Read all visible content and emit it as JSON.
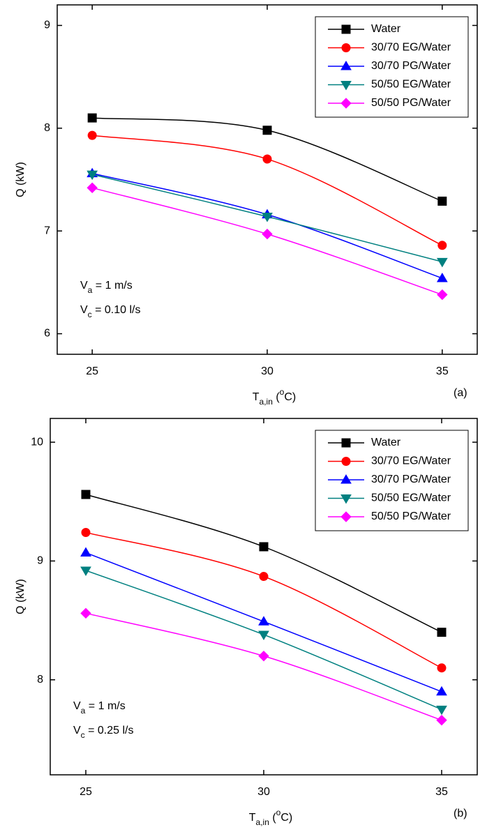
{
  "chart_data": [
    {
      "type": "line",
      "y_label": "Q (kW)",
      "x_label": {
        "main": "T",
        "sub": "a,in",
        "rest": " (",
        "sup": "o",
        "end": "C)"
      },
      "panel_label": "(a)",
      "annotations": [
        {
          "main": "V",
          "sub": "a",
          "rest": " = 1 m/s"
        },
        {
          "main": "V",
          "sub": "c",
          "rest": " = 0.10 l/s"
        }
      ],
      "x": [
        25,
        30,
        35
      ],
      "xlim": [
        24,
        36
      ],
      "xticks": [
        25,
        30,
        35
      ],
      "ylim": [
        5.8,
        9.2
      ],
      "yticks": [
        6,
        7,
        8,
        9
      ],
      "legend": "upper right",
      "series": [
        {
          "name": "Water",
          "color": "#000000",
          "marker": "square",
          "values": [
            8.1,
            7.98,
            7.29
          ]
        },
        {
          "name": "30/70 EG/Water",
          "color": "#ff0000",
          "marker": "circle",
          "values": [
            7.93,
            7.7,
            6.86
          ]
        },
        {
          "name": "30/70 PG/Water",
          "color": "#0000ff",
          "marker": "triangle-up",
          "values": [
            7.56,
            7.16,
            6.54
          ]
        },
        {
          "name": "50/50 EG/Water",
          "color": "#008080",
          "marker": "triangle-down",
          "values": [
            7.55,
            7.14,
            6.7
          ]
        },
        {
          "name": "50/50 PG/Water",
          "color": "#ff00ff",
          "marker": "diamond",
          "values": [
            7.42,
            6.97,
            6.38
          ]
        }
      ]
    },
    {
      "type": "line",
      "y_label": "Q (kW)",
      "x_label": {
        "main": "T",
        "sub": "a,in",
        "rest": " (",
        "sup": "o",
        "end": "C)"
      },
      "panel_label": "(b)",
      "annotations": [
        {
          "main": "V",
          "sub": "a",
          "rest": " = 1 m/s"
        },
        {
          "main": "V",
          "sub": "c",
          "rest": " = 0.25 l/s"
        }
      ],
      "x": [
        25,
        30,
        35
      ],
      "xlim": [
        24,
        36
      ],
      "xticks": [
        25,
        30,
        35
      ],
      "ylim": [
        7.2,
        10.2
      ],
      "yticks": [
        8,
        9,
        10
      ],
      "legend": "upper right",
      "series": [
        {
          "name": "Water",
          "color": "#000000",
          "marker": "square",
          "values": [
            9.56,
            9.12,
            8.4
          ]
        },
        {
          "name": "30/70 EG/Water",
          "color": "#ff0000",
          "marker": "circle",
          "values": [
            9.24,
            8.87,
            8.1
          ]
        },
        {
          "name": "30/70 PG/Water",
          "color": "#0000ff",
          "marker": "triangle-up",
          "values": [
            9.07,
            8.49,
            7.9
          ]
        },
        {
          "name": "50/50 EG/Water",
          "color": "#008080",
          "marker": "triangle-down",
          "values": [
            8.92,
            8.38,
            7.75
          ]
        },
        {
          "name": "50/50 PG/Water",
          "color": "#ff00ff",
          "marker": "diamond",
          "values": [
            8.56,
            8.2,
            7.66
          ]
        }
      ]
    }
  ]
}
